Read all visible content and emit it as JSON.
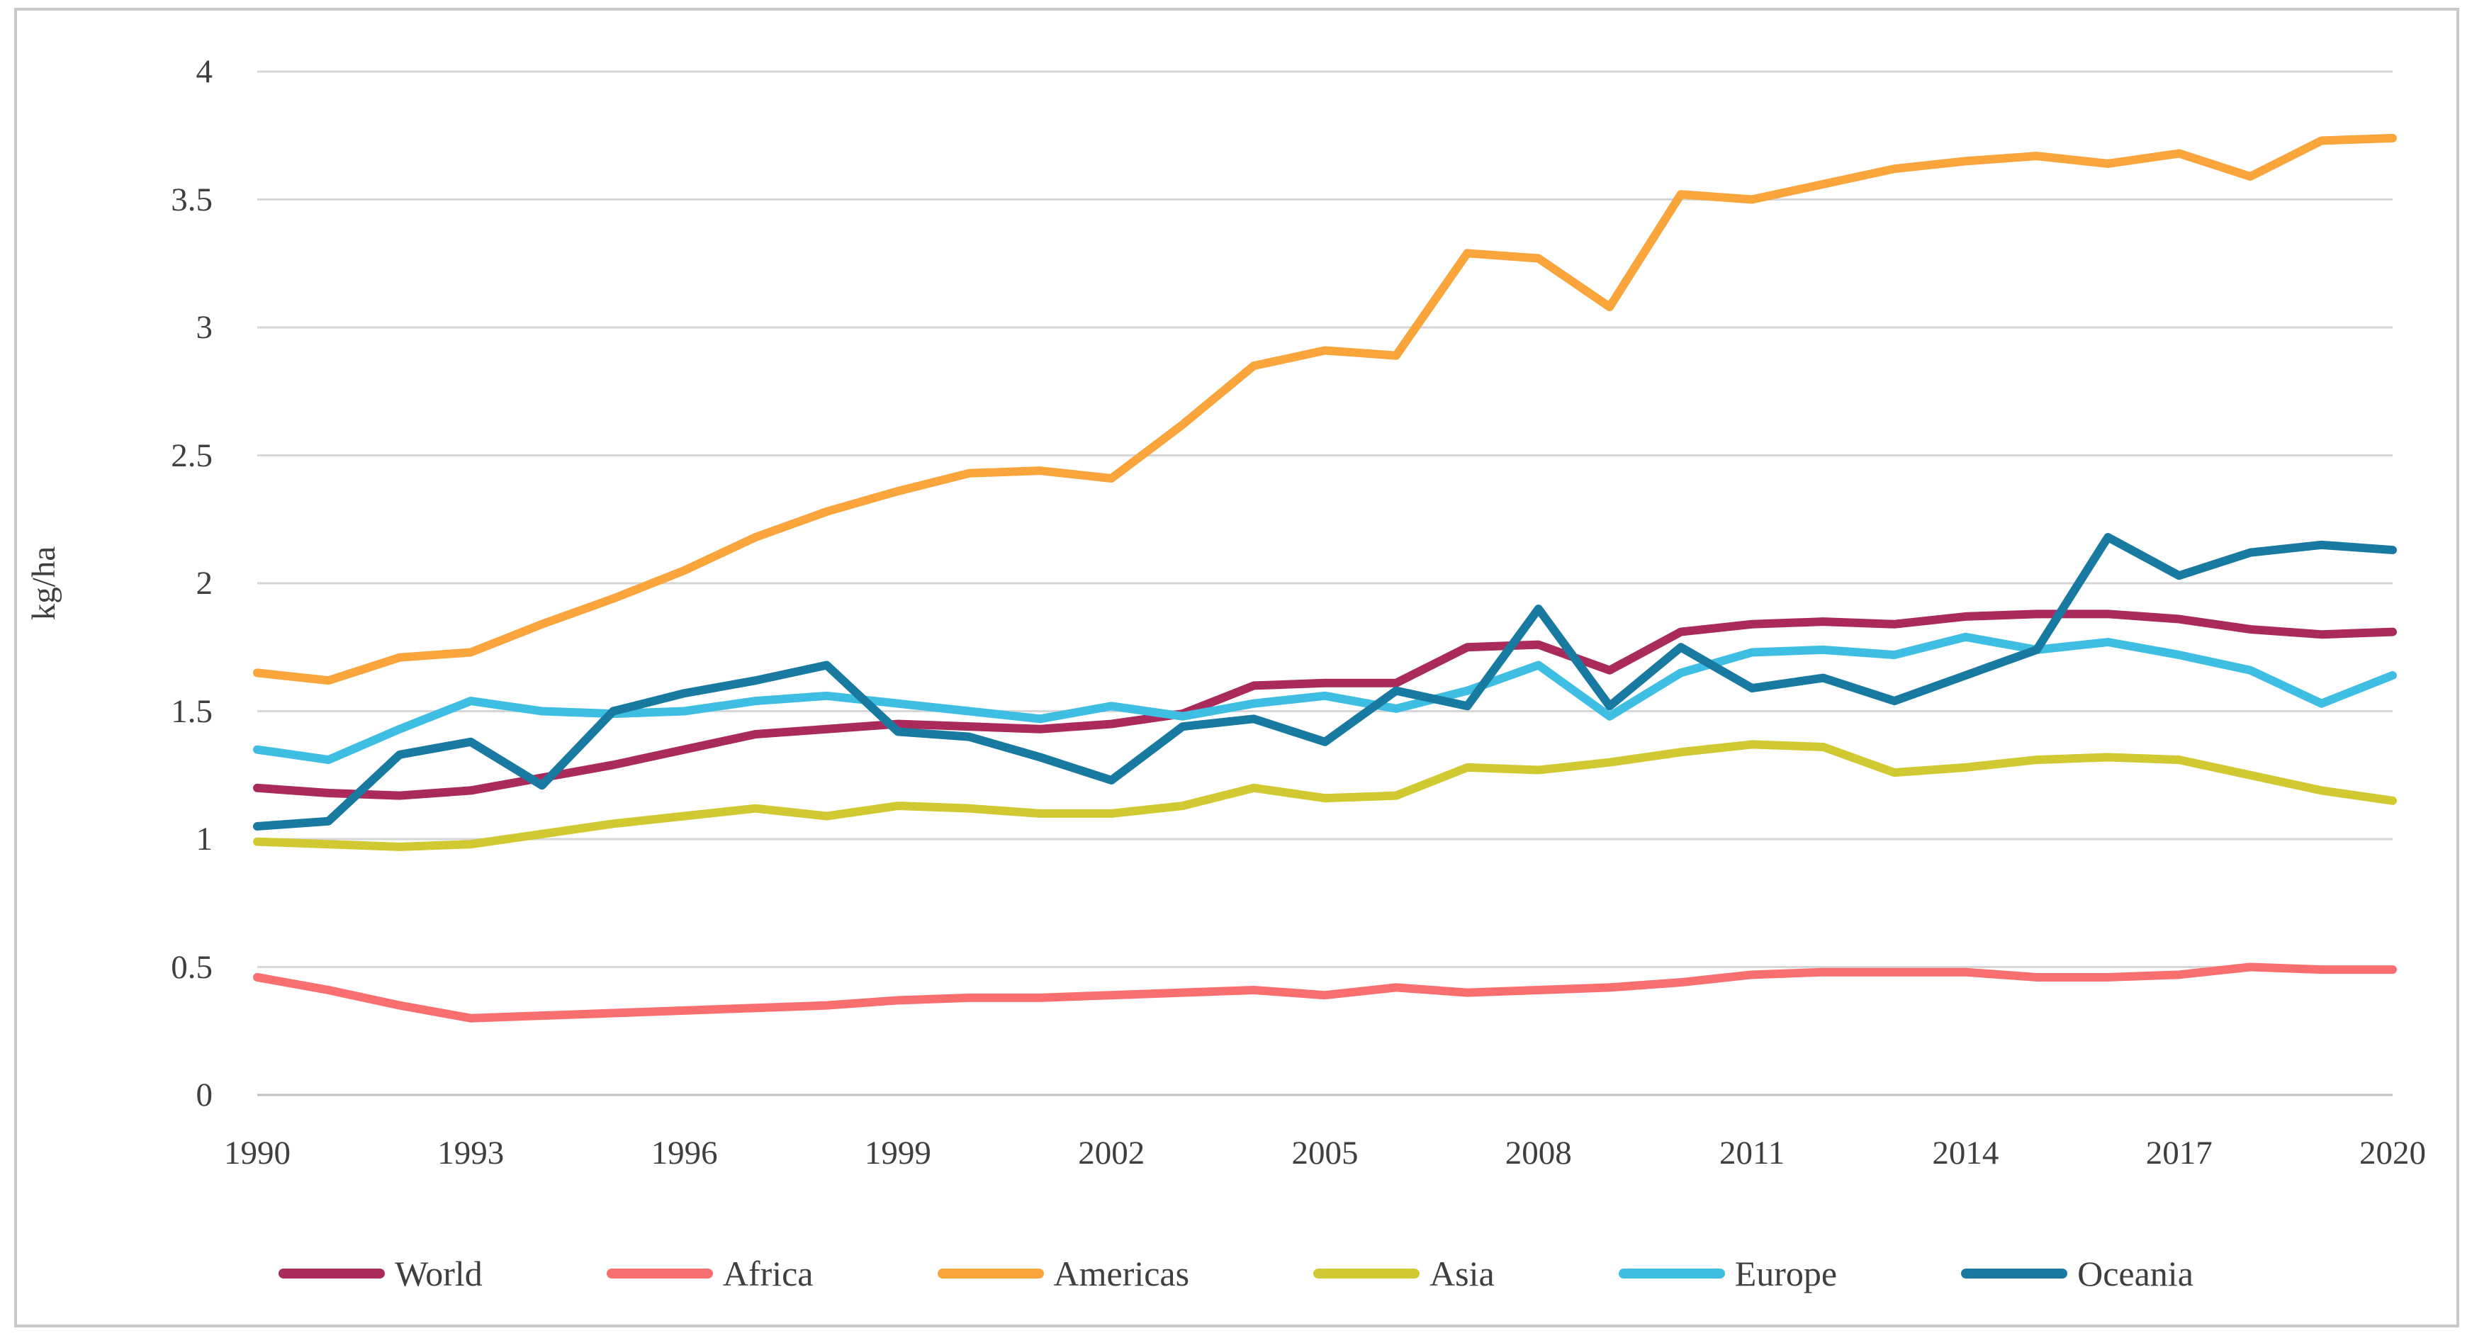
{
  "chart_data": {
    "type": "line",
    "title": "",
    "xlabel": "",
    "ylabel": "kg/ha",
    "ylim": [
      0,
      4
    ],
    "grid": "horizontal",
    "legend_position": "bottom",
    "x": [
      1990,
      1991,
      1992,
      1993,
      1994,
      1995,
      1996,
      1997,
      1998,
      1999,
      2000,
      2001,
      2002,
      2003,
      2004,
      2005,
      2006,
      2007,
      2008,
      2009,
      2010,
      2011,
      2012,
      2013,
      2014,
      2015,
      2016,
      2017,
      2018,
      2019,
      2020
    ],
    "x_tick_labels": [
      "1990",
      "1993",
      "1996",
      "1999",
      "2002",
      "2005",
      "2008",
      "2011",
      "2014",
      "2017",
      "2020"
    ],
    "y_ticks": [
      0,
      0.5,
      1,
      1.5,
      2,
      2.5,
      3,
      3.5,
      4
    ],
    "y_tick_labels": [
      "0",
      "0.5",
      "1",
      "1.5",
      "2",
      "2.5",
      "3",
      "3.5",
      "4"
    ],
    "series": [
      {
        "name": "World",
        "color": "#aa2a5c",
        "values": [
          1.2,
          1.18,
          1.17,
          1.19,
          1.24,
          1.29,
          1.35,
          1.41,
          1.43,
          1.45,
          1.44,
          1.43,
          1.45,
          1.49,
          1.6,
          1.61,
          1.61,
          1.75,
          1.76,
          1.66,
          1.81,
          1.84,
          1.85,
          1.84,
          1.87,
          1.88,
          1.88,
          1.86,
          1.82,
          1.8,
          1.81
        ]
      },
      {
        "name": "Africa",
        "color": "#f96f6f",
        "values": [
          0.46,
          0.41,
          0.35,
          0.3,
          0.31,
          0.32,
          0.33,
          0.34,
          0.35,
          0.37,
          0.38,
          0.38,
          0.39,
          0.4,
          0.41,
          0.39,
          0.42,
          0.4,
          0.41,
          0.42,
          0.44,
          0.47,
          0.48,
          0.48,
          0.48,
          0.46,
          0.46,
          0.47,
          0.5,
          0.49,
          0.49
        ]
      },
      {
        "name": "Americas",
        "color": "#faa43c",
        "values": [
          1.65,
          1.62,
          1.71,
          1.73,
          1.84,
          1.94,
          2.05,
          2.18,
          2.28,
          2.36,
          2.43,
          2.44,
          2.41,
          2.62,
          2.85,
          2.91,
          2.89,
          3.29,
          3.27,
          3.08,
          3.52,
          3.5,
          3.56,
          3.62,
          3.65,
          3.67,
          3.64,
          3.68,
          3.59,
          3.73,
          3.74
        ]
      },
      {
        "name": "Asia",
        "color": "#d0c932",
        "values": [
          0.99,
          0.98,
          0.97,
          0.98,
          1.02,
          1.06,
          1.09,
          1.12,
          1.09,
          1.13,
          1.12,
          1.1,
          1.1,
          1.13,
          1.2,
          1.16,
          1.17,
          1.28,
          1.27,
          1.3,
          1.34,
          1.37,
          1.36,
          1.26,
          1.28,
          1.31,
          1.32,
          1.31,
          1.25,
          1.19,
          1.15
        ]
      },
      {
        "name": "Europe",
        "color": "#3fbee4",
        "values": [
          1.35,
          1.31,
          1.43,
          1.54,
          1.5,
          1.49,
          1.5,
          1.54,
          1.56,
          1.53,
          1.5,
          1.47,
          1.52,
          1.48,
          1.53,
          1.56,
          1.51,
          1.58,
          1.68,
          1.48,
          1.65,
          1.73,
          1.74,
          1.72,
          1.79,
          1.74,
          1.77,
          1.72,
          1.66,
          1.53,
          1.64
        ]
      },
      {
        "name": "Oceania",
        "color": "#187aa1",
        "values": [
          1.05,
          1.07,
          1.33,
          1.38,
          1.21,
          1.5,
          1.57,
          1.62,
          1.68,
          1.42,
          1.4,
          1.32,
          1.23,
          1.44,
          1.47,
          1.38,
          1.58,
          1.52,
          1.9,
          1.52,
          1.75,
          1.59,
          1.63,
          1.54,
          1.64,
          1.74,
          2.18,
          2.03,
          2.12,
          2.15,
          2.13
        ]
      }
    ],
    "style": {
      "gridline_color": "#d6d6d6",
      "axis_line_color": "#bfbfbf",
      "tick_text_color": "#3f3f3f",
      "frame_border_color": "#c9c9c9",
      "background": "#ffffff",
      "line_width": 12
    }
  }
}
